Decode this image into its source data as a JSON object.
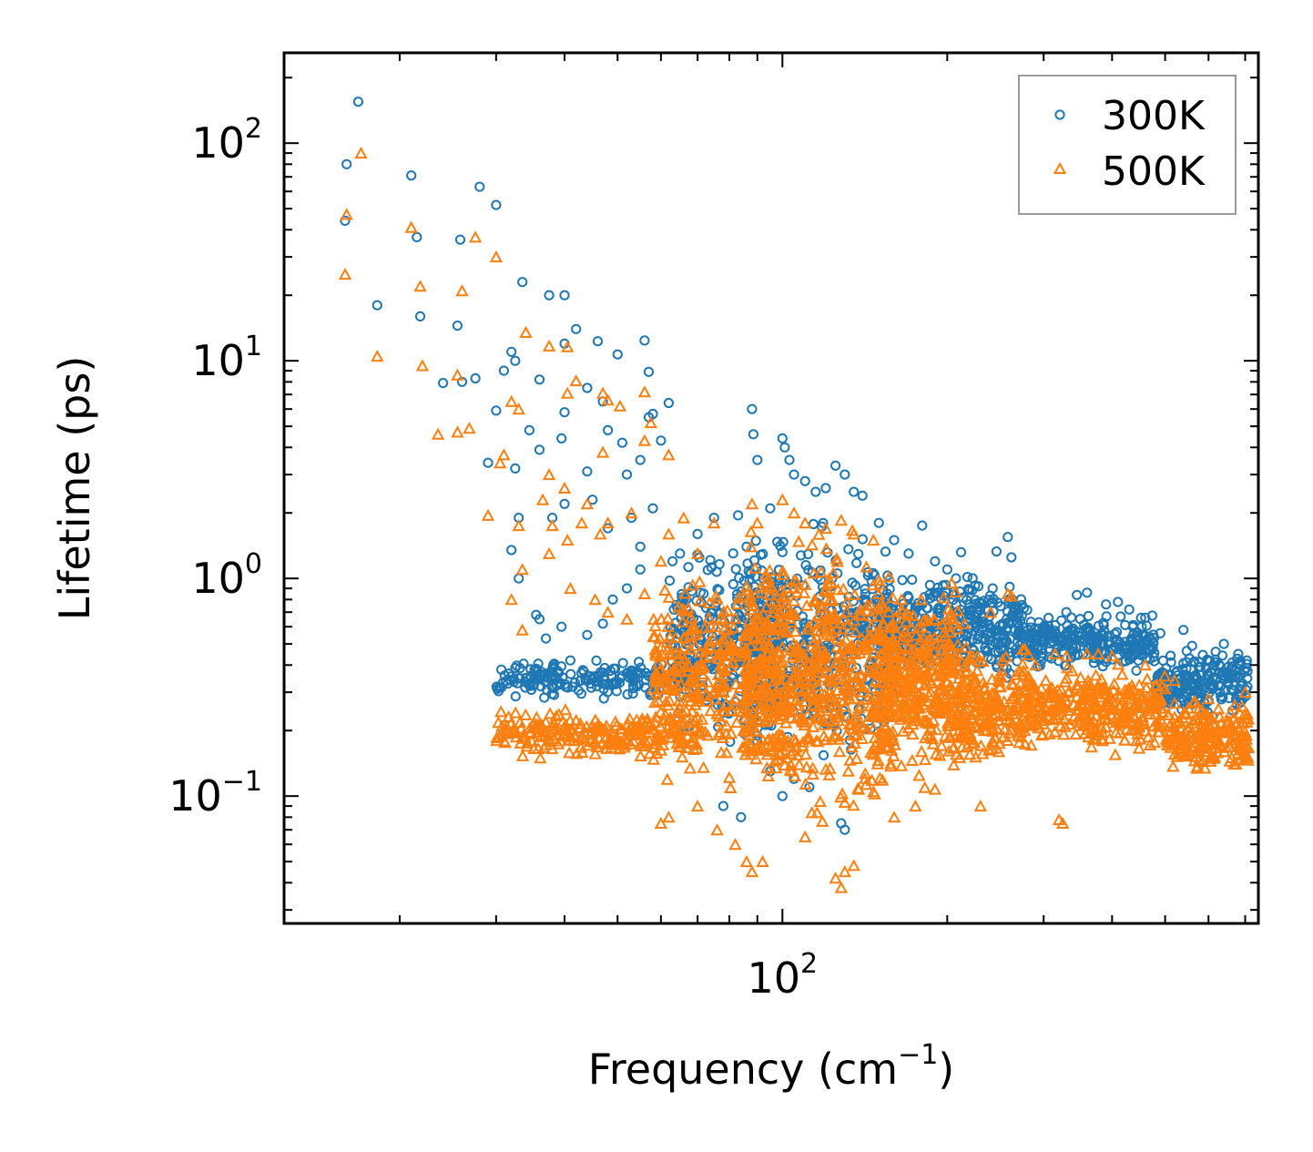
{
  "chart_data": {
    "type": "scatter",
    "title": "",
    "xlabel": "Frequency (cm",
    "xlabel_sup": "−1",
    "xlabel_end": ")",
    "ylabel": "Lifetime (ps)",
    "xscale": "log",
    "yscale": "log",
    "xlim": [
      12.3,
      740
    ],
    "ylim": [
      0.026,
      260
    ],
    "x_tick_labels": [
      {
        "value": 100,
        "base": "10",
        "exp": "2"
      }
    ],
    "y_tick_labels": [
      {
        "value": 100,
        "base": "10",
        "exp": "2"
      },
      {
        "value": 10,
        "base": "10",
        "exp": "1"
      },
      {
        "value": 1,
        "base": "10",
        "exp": "0"
      },
      {
        "value": 0.1,
        "base": "10",
        "exp": "−1"
      }
    ],
    "legend_position": "top-right",
    "series": [
      {
        "name": "300K",
        "marker": "circle",
        "color": "#1f77b4",
        "points": [
          [
            16.8,
            155
          ],
          [
            16.0,
            80
          ],
          [
            15.9,
            44
          ],
          [
            21.0,
            71
          ],
          [
            21.5,
            37
          ],
          [
            28.0,
            63
          ],
          [
            30.0,
            52
          ],
          [
            18.2,
            18
          ],
          [
            21.8,
            16
          ],
          [
            25.5,
            14.5
          ],
          [
            25.8,
            36
          ],
          [
            27.5,
            8.3
          ],
          [
            24.0,
            7.9
          ],
          [
            26.0,
            8.0
          ],
          [
            33.5,
            23
          ],
          [
            37.5,
            20
          ],
          [
            40.0,
            20
          ],
          [
            42.0,
            14
          ],
          [
            40.0,
            12
          ],
          [
            46.0,
            12.3
          ],
          [
            50.0,
            10.7
          ],
          [
            56.0,
            12.4
          ],
          [
            57.0,
            8.9
          ],
          [
            62.0,
            6.4
          ],
          [
            31.0,
            9.0
          ],
          [
            32.0,
            11
          ],
          [
            32.5,
            10
          ],
          [
            36.0,
            8.2
          ],
          [
            44.0,
            7.5
          ],
          [
            30.0,
            5.9
          ],
          [
            34.5,
            4.8
          ],
          [
            36.0,
            3.9
          ],
          [
            29.0,
            3.4
          ],
          [
            32.5,
            3.2
          ],
          [
            44.0,
            3.1
          ],
          [
            40.0,
            5.8
          ],
          [
            39.5,
            4.4
          ],
          [
            47.0,
            6.5
          ],
          [
            48.0,
            4.8
          ],
          [
            51.0,
            4.2
          ],
          [
            52.0,
            3.0
          ],
          [
            55.0,
            3.5
          ],
          [
            57.0,
            5.5
          ],
          [
            58.0,
            5.7
          ],
          [
            60.0,
            4.3
          ],
          [
            33.0,
            1.9
          ],
          [
            38.0,
            1.9
          ],
          [
            40.0,
            2.2
          ],
          [
            45.0,
            2.3
          ],
          [
            48.0,
            1.7
          ],
          [
            53.0,
            1.9
          ],
          [
            55.0,
            1.4
          ],
          [
            58.0,
            2.1
          ],
          [
            32.0,
            1.35
          ],
          [
            33.0,
            1.0
          ],
          [
            35.5,
            0.68
          ],
          [
            36.0,
            0.65
          ],
          [
            37.0,
            0.53
          ],
          [
            39.5,
            0.6
          ],
          [
            41.0,
            0.42
          ],
          [
            44.0,
            0.55
          ],
          [
            47.0,
            0.62
          ],
          [
            49.0,
            0.8
          ],
          [
            52.0,
            0.9
          ],
          [
            55.0,
            1.1
          ],
          [
            63.0,
            1.2
          ],
          [
            65.0,
            1.3
          ],
          [
            70.0,
            1.6
          ],
          [
            75.0,
            1.9
          ],
          [
            83.0,
            1.95
          ],
          [
            86.0,
            1.4
          ],
          [
            88.0,
            6.0
          ],
          [
            88.5,
            4.6
          ],
          [
            90.0,
            3.5
          ],
          [
            95.0,
            2.1
          ],
          [
            100.0,
            4.4
          ],
          [
            101.0,
            4.0
          ],
          [
            103.0,
            3.5
          ],
          [
            105.0,
            3.0
          ],
          [
            110.0,
            2.8
          ],
          [
            115.0,
            2.5
          ],
          [
            120.0,
            2.6
          ],
          [
            125.0,
            3.3
          ],
          [
            130.0,
            3.0
          ],
          [
            135.0,
            2.5
          ],
          [
            140.0,
            2.4
          ],
          [
            150.0,
            1.8
          ],
          [
            160.0,
            1.5
          ],
          [
            170.0,
            1.3
          ],
          [
            180.0,
            1.75
          ],
          [
            190.0,
            1.2
          ],
          [
            200.0,
            1.1
          ],
          [
            212.0,
            1.32
          ],
          [
            228.0,
            0.92
          ],
          [
            246.0,
            1.33
          ],
          [
            258.0,
            1.55
          ],
          [
            262.0,
            1.25
          ],
          [
            270.0,
            0.72
          ],
          [
            300.0,
            0.6
          ],
          [
            330.0,
            0.7
          ],
          [
            345.0,
            0.84
          ],
          [
            360.0,
            0.86
          ],
          [
            390.0,
            0.76
          ],
          [
            410.0,
            0.78
          ],
          [
            430.0,
            0.72
          ],
          [
            460.0,
            0.66
          ],
          [
            490.0,
            0.56
          ],
          [
            540.0,
            0.58
          ],
          [
            560.0,
            0.49
          ],
          [
            600.0,
            0.42
          ],
          [
            640.0,
            0.5
          ],
          [
            680.0,
            0.45
          ],
          [
            705.0,
            0.42
          ],
          [
            95.0,
            0.13
          ],
          [
            100.0,
            0.1
          ],
          [
            105.0,
            0.12
          ],
          [
            112.0,
            0.11
          ],
          [
            128.0,
            0.075
          ],
          [
            130.0,
            0.07
          ],
          [
            78.0,
            0.09
          ],
          [
            84.0,
            0.08
          ]
        ],
        "bands": [
          {
            "x": [
              30,
              70
            ],
            "y": [
              0.27,
              0.44
            ],
            "n": 210
          },
          {
            "x": [
              62,
              100
            ],
            "y": [
              0.15,
              1.7
            ],
            "n": 300
          },
          {
            "x": [
              85,
              160
            ],
            "y": [
              0.1,
              2.2
            ],
            "n": 420
          },
          {
            "x": [
              150,
              280
            ],
            "y": [
              0.3,
              1.2
            ],
            "n": 380
          },
          {
            "x": [
              280,
              480
            ],
            "y": [
              0.36,
              0.72
            ],
            "n": 280
          },
          {
            "x": [
              480,
              710
            ],
            "y": [
              0.22,
              0.52
            ],
            "n": 200
          }
        ]
      },
      {
        "name": "500K",
        "marker": "triangle",
        "color": "#ff7f0e",
        "points": [
          [
            17.0,
            90
          ],
          [
            16.0,
            47
          ],
          [
            15.9,
            25
          ],
          [
            21.0,
            41
          ],
          [
            21.8,
            22
          ],
          [
            27.5,
            37
          ],
          [
            30.0,
            30
          ],
          [
            18.2,
            10.5
          ],
          [
            22.0,
            9.5
          ],
          [
            26.0,
            21
          ],
          [
            25.5,
            8.6
          ],
          [
            23.5,
            4.6
          ],
          [
            25.5,
            4.7
          ],
          [
            26.8,
            4.9
          ],
          [
            32.0,
            6.5
          ],
          [
            33.0,
            6.0
          ],
          [
            34.0,
            13.5
          ],
          [
            37.5,
            11.7
          ],
          [
            40.5,
            11.6
          ],
          [
            42.0,
            8.1
          ],
          [
            40.5,
            7.1
          ],
          [
            47.0,
            7.1
          ],
          [
            48.0,
            6.6
          ],
          [
            50.5,
            6.2
          ],
          [
            56.0,
            7.2
          ],
          [
            57.5,
            5.2
          ],
          [
            62.0,
            3.7
          ],
          [
            30.5,
            3.4
          ],
          [
            31.0,
            3.7
          ],
          [
            36.5,
            2.3
          ],
          [
            37.5,
            3.0
          ],
          [
            40.0,
            2.6
          ],
          [
            44.0,
            2.2
          ],
          [
            47.0,
            3.8
          ],
          [
            53.0,
            2.0
          ],
          [
            56.0,
            4.3
          ],
          [
            29.0,
            1.95
          ],
          [
            33.0,
            1.75
          ],
          [
            38.0,
            1.75
          ],
          [
            43.0,
            1.8
          ],
          [
            46.5,
            1.6
          ],
          [
            48.0,
            1.8
          ],
          [
            32.0,
            0.8
          ],
          [
            33.5,
            1.1
          ],
          [
            37.5,
            1.3
          ],
          [
            40.5,
            1.5
          ],
          [
            33.5,
            0.58
          ],
          [
            41.0,
            0.9
          ],
          [
            45.5,
            0.8
          ],
          [
            48.0,
            0.7
          ],
          [
            52.0,
            0.65
          ],
          [
            56.0,
            0.85
          ],
          [
            60.0,
            1.2
          ],
          [
            62.0,
            1.6
          ],
          [
            66.0,
            1.9
          ],
          [
            70.0,
            1.3
          ],
          [
            75.0,
            1.8
          ],
          [
            88.0,
            2.2
          ],
          [
            90.0,
            1.8
          ],
          [
            100.0,
            2.3
          ],
          [
            105.0,
            2.0
          ],
          [
            110.0,
            1.8
          ],
          [
            120.0,
            1.7
          ],
          [
            128.0,
            1.85
          ],
          [
            135.0,
            1.6
          ],
          [
            150.0,
            0.85
          ],
          [
            165.0,
            0.8
          ],
          [
            200.0,
            0.65
          ],
          [
            215.0,
            0.62
          ],
          [
            240.0,
            0.7
          ],
          [
            258.0,
            0.85
          ],
          [
            262.0,
            0.83
          ],
          [
            290.0,
            0.4
          ],
          [
            330.0,
            0.44
          ],
          [
            360.0,
            0.45
          ],
          [
            400.0,
            0.44
          ],
          [
            460.0,
            0.4
          ],
          [
            520.0,
            0.34
          ],
          [
            600.0,
            0.28
          ],
          [
            700.0,
            0.3
          ],
          [
            60.0,
            0.075
          ],
          [
            62.0,
            0.08
          ],
          [
            70.0,
            0.09
          ],
          [
            76.0,
            0.07
          ],
          [
            82.0,
            0.06
          ],
          [
            86.0,
            0.05
          ],
          [
            88.0,
            0.045
          ],
          [
            92.0,
            0.05
          ],
          [
            110.0,
            0.065
          ],
          [
            125.0,
            0.042
          ],
          [
            128.0,
            0.038
          ],
          [
            130.0,
            0.045
          ],
          [
            135.0,
            0.048
          ],
          [
            160.0,
            0.08
          ],
          [
            175.0,
            0.09
          ],
          [
            230.0,
            0.09
          ],
          [
            320.0,
            0.078
          ],
          [
            325.0,
            0.075
          ]
        ],
        "bands": [
          {
            "x": [
              30,
              70
            ],
            "y": [
              0.14,
              0.26
            ],
            "n": 230
          },
          {
            "x": [
              58,
              95
            ],
            "y": [
              0.09,
              1.4
            ],
            "n": 340
          },
          {
            "x": [
              85,
              160
            ],
            "y": [
              0.06,
              2.1
            ],
            "n": 620
          },
          {
            "x": [
              150,
              210
            ],
            "y": [
              0.1,
              1.1
            ],
            "n": 360
          },
          {
            "x": [
              210,
              290
            ],
            "y": [
              0.12,
              0.55
            ],
            "n": 240
          },
          {
            "x": [
              290,
              500
            ],
            "y": [
              0.14,
              0.46
            ],
            "n": 300
          },
          {
            "x": [
              500,
              710
            ],
            "y": [
              0.12,
              0.31
            ],
            "n": 200
          }
        ]
      }
    ]
  }
}
